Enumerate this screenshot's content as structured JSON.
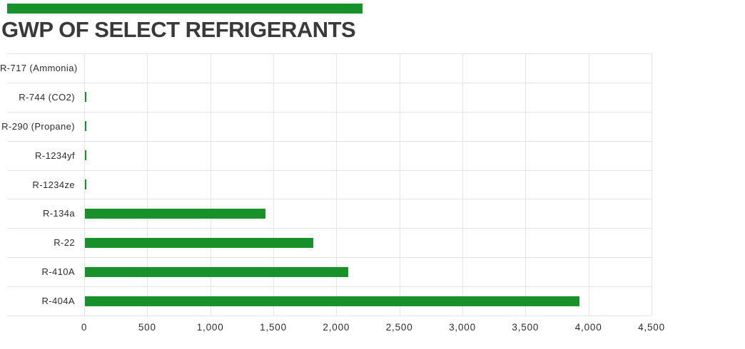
{
  "page": {
    "background": "#ffffff"
  },
  "header": {
    "accent_bar_color": "#18912b",
    "title": "GWP OF SELECT REFRIGERANTS",
    "title_color": "#3a3a3a"
  },
  "chart_data": {
    "type": "bar",
    "orientation": "horizontal",
    "title": "GWP OF SELECT REFRIGERANTS",
    "categories": [
      "R-717 (Ammonia)",
      "R-744 (CO2)",
      "R-290 (Propane)",
      "R-1234yf",
      "R-1234ze",
      "R-134a",
      "R-22",
      "R-410A",
      "R-404A"
    ],
    "values": [
      0,
      1,
      3,
      4,
      6,
      1430,
      1810,
      2088,
      3922
    ],
    "xlabel": "",
    "ylabel": "",
    "xlim": [
      0,
      4500
    ],
    "x_ticks": [
      0,
      500,
      1000,
      1500,
      2000,
      2500,
      3000,
      3500,
      4000,
      4500
    ],
    "x_tick_labels": [
      "0",
      "500",
      "1,000",
      "1,500",
      "2,000",
      "2,500",
      "3,000",
      "3,500",
      "4,000",
      "4,500"
    ],
    "bar_color": "#18912b",
    "grid": true,
    "gridline_color": "#e4e4e4",
    "label_color": "#2d2d2d",
    "legend": "none"
  }
}
